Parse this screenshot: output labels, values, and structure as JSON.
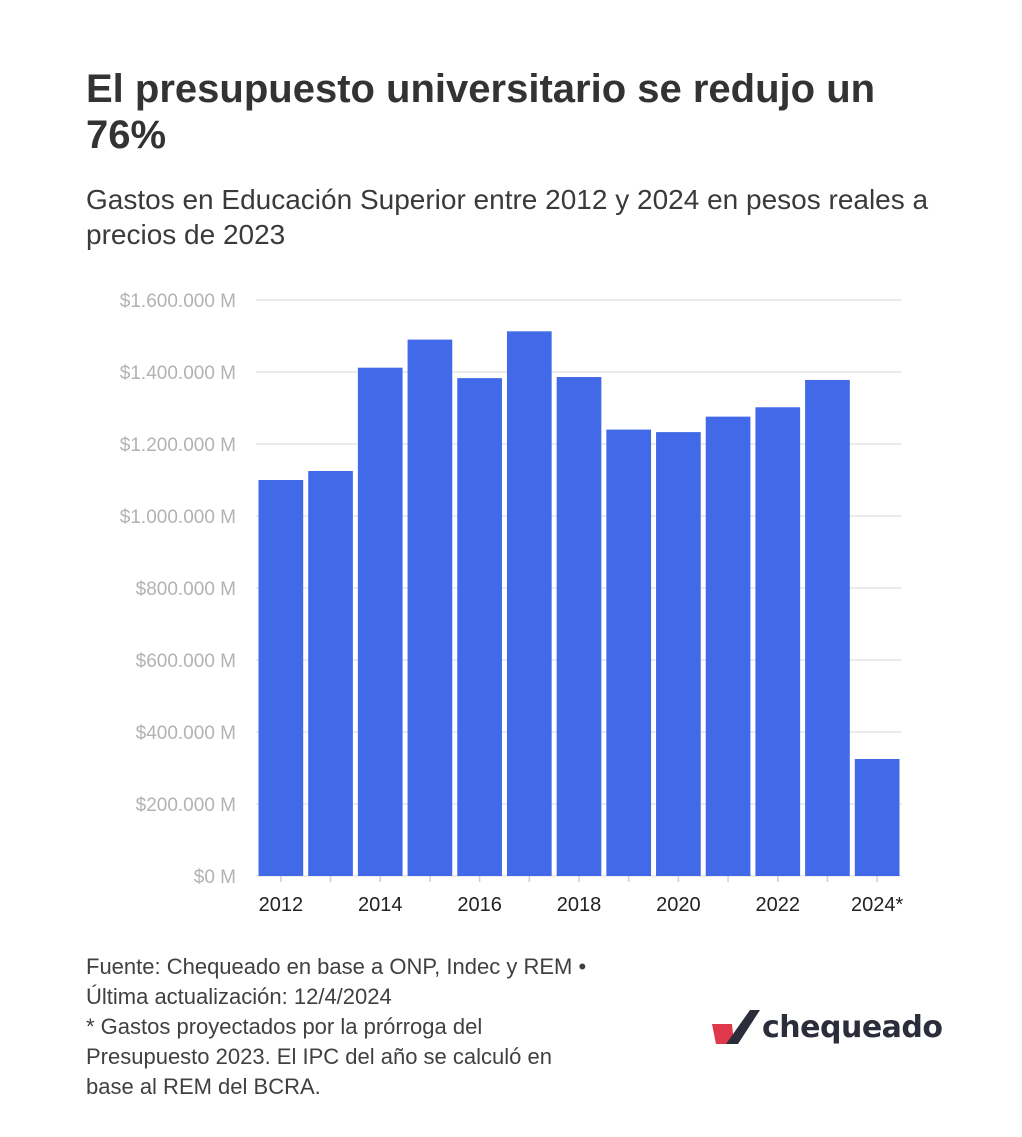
{
  "header": {
    "title": "El presupuesto universitario se redujo un 76%",
    "subtitle": "Gastos en Educación Superior entre 2012 y 2024 en pesos reales a precios de 2023"
  },
  "chart_data": {
    "type": "bar",
    "categories": [
      "2012",
      "2013",
      "2014",
      "2015",
      "2016",
      "2017",
      "2018",
      "2019",
      "2020",
      "2021",
      "2022",
      "2023",
      "2024*"
    ],
    "x_tick_labels": [
      "2012",
      "",
      "2014",
      "",
      "2016",
      "",
      "2018",
      "",
      "2020",
      "",
      "2022",
      "",
      "2024*"
    ],
    "values": [
      1100000,
      1125000,
      1412000,
      1490000,
      1383000,
      1513000,
      1386000,
      1240000,
      1233000,
      1276000,
      1302000,
      1378000,
      325000
    ],
    "ylim": [
      0,
      1600000
    ],
    "y_ticks": [
      0,
      200000,
      400000,
      600000,
      800000,
      1000000,
      1200000,
      1400000,
      1600000
    ],
    "y_tick_labels": [
      "$0 M",
      "$200.000 M",
      "$400.000 M",
      "$600.000 M",
      "$800.000 M",
      "$1.000.000 M",
      "$1.200.000 M",
      "$1.400.000 M",
      "$1.600.000 M"
    ],
    "grid": true,
    "bar_color": "#4169e8",
    "grid_color": "#ececec",
    "tick_label_color": "#b2b2b2",
    "x_label_color": "#222222"
  },
  "footer": {
    "line1": "Fuente: Chequeado en base a ONP, Indec y REM •",
    "line2": "Última actualización: 12/4/2024",
    "line3": "* Gastos proyectados por la prórroga del",
    "line4": "Presupuesto 2023. El IPC del año se calculó en",
    "line5": "base al REM del BCRA."
  },
  "logo": {
    "text": "chequeado",
    "icon": "chequeado-check-icon",
    "color_red": "#e0384b",
    "color_dark": "#2b2d3a"
  }
}
